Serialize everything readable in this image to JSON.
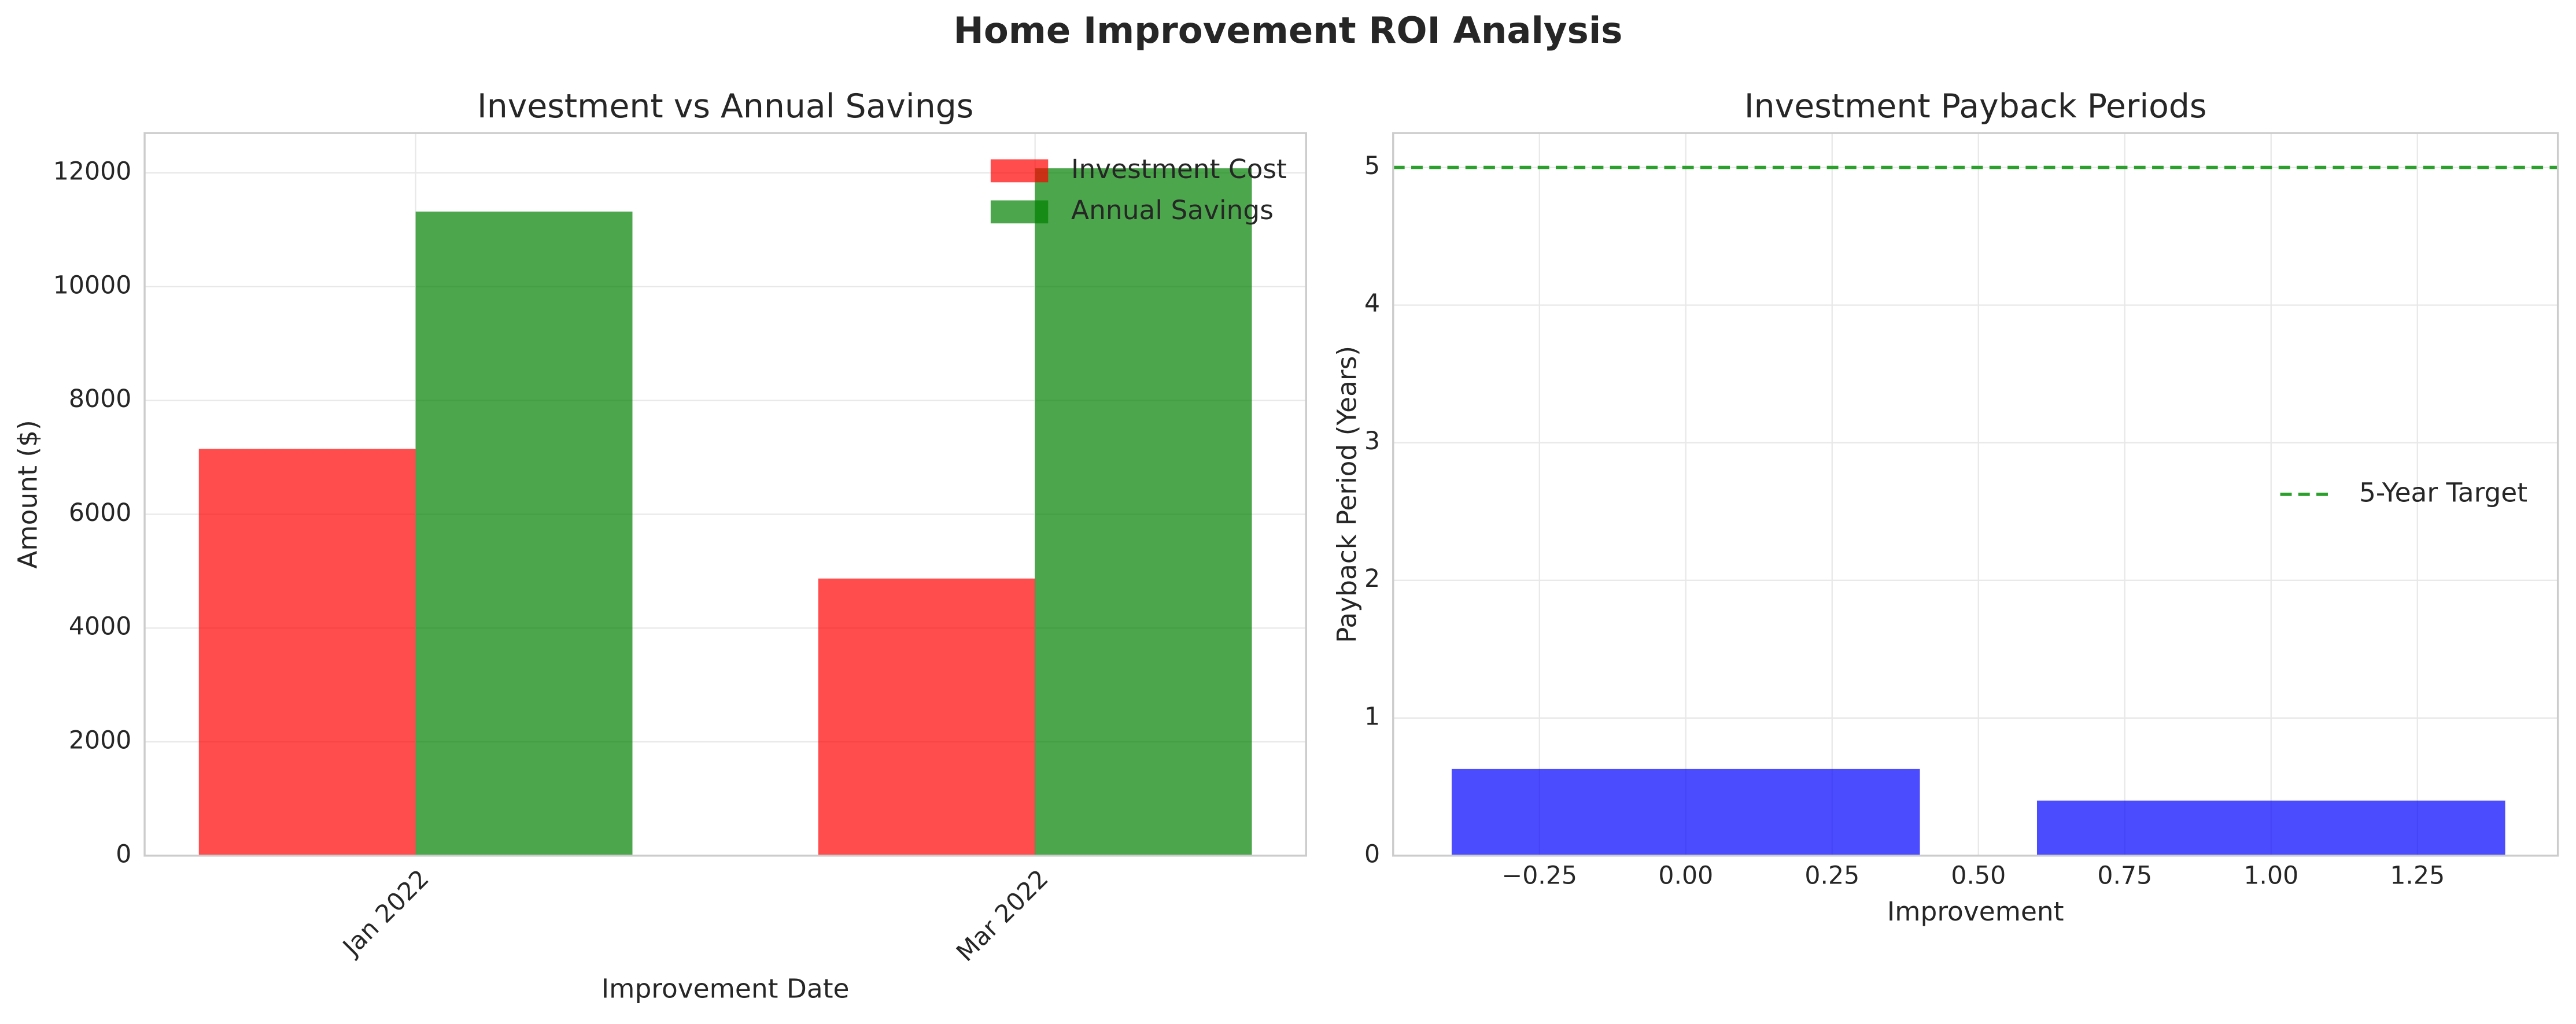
{
  "title": "Home Improvement ROI Analysis",
  "chart_data": [
    {
      "type": "bar",
      "title": "Investment vs Annual Savings",
      "x_label": "Improvement Date",
      "y_label": "Amount ($)",
      "categories": [
        "Jan 2022",
        "Mar 2022"
      ],
      "series": [
        {
          "name": "Investment Cost",
          "color": "#ff0000",
          "values": [
            7150,
            4870
          ]
        },
        {
          "name": "Annual Savings",
          "color": "#008000",
          "values": [
            11320,
            12080
          ]
        }
      ],
      "ylim": [
        0,
        12700
      ],
      "yticks": [
        0,
        2000,
        4000,
        6000,
        8000,
        10000,
        12000
      ],
      "grid": true,
      "legend": "upper right"
    },
    {
      "type": "bar",
      "title": "Investment Payback Periods",
      "x_label": "Improvement",
      "y_label": "Payback Period (Years)",
      "x": [
        0,
        1
      ],
      "values": [
        0.63,
        0.4
      ],
      "color": "#0000ff",
      "xlim": [
        -0.5,
        1.49
      ],
      "xticks": [
        {
          "value": -0.25,
          "label": "−0.25"
        },
        {
          "value": 0,
          "label": "0.00"
        },
        0.25,
        {
          "value": 0.5,
          "label": "0.50"
        },
        0.75,
        {
          "value": 1,
          "label": "1.00"
        },
        1.25
      ],
      "ylim": [
        0,
        5.25
      ],
      "yticks": [
        0,
        1,
        2,
        3,
        4,
        5
      ],
      "reference_line": {
        "value": 5,
        "label": "5-Year Target",
        "color": "#2ca02c"
      },
      "grid": true,
      "legend": "center right"
    }
  ]
}
